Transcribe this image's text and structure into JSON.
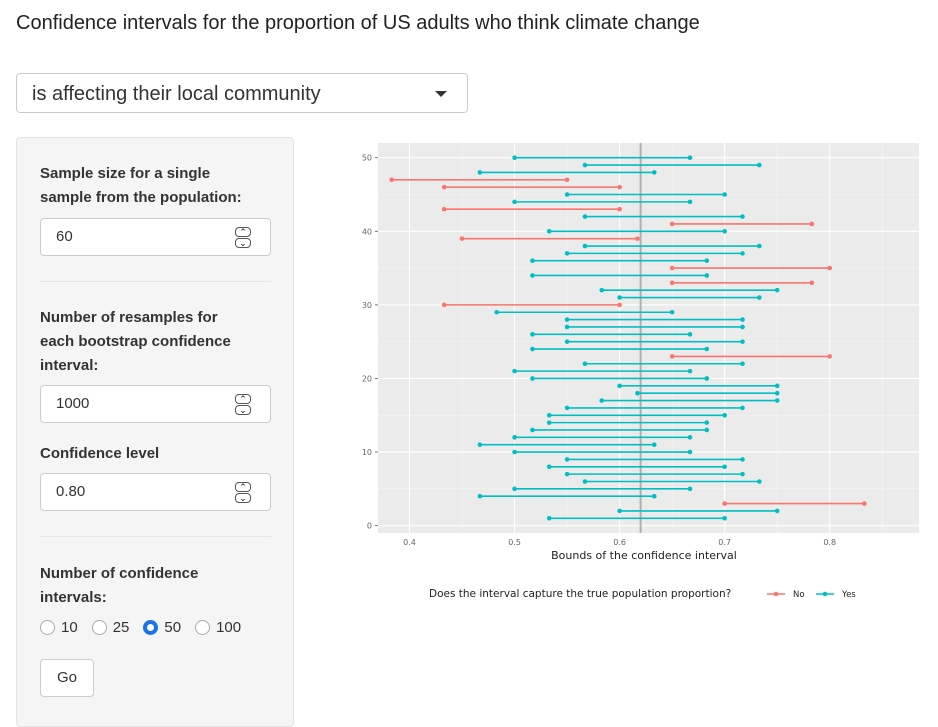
{
  "title": "Confidence intervals for the proportion of US adults who think climate change",
  "statement_select": {
    "value": "is affecting their local community"
  },
  "sample_size": {
    "label_line1": "Sample size for a single",
    "label_line2": "sample from the population:",
    "value": "60"
  },
  "resamples": {
    "label_line1": "Number of resamples for",
    "label_line2": "each bootstrap confidence",
    "label_line3": "interval:",
    "value": "1000"
  },
  "confidence_level": {
    "label": "Confidence level",
    "value": "0.80"
  },
  "num_intervals": {
    "label_line1": "Number of confidence",
    "label_line2": "intervals:",
    "options": [
      "10",
      "25",
      "50",
      "100"
    ],
    "selected": "50"
  },
  "go_button": {
    "label": "Go"
  },
  "colors": {
    "no": "#f8766d",
    "yes": "#00bfc4",
    "panel_bg": "#ebebeb",
    "true_line": "#b0b0b0"
  },
  "chart_data": {
    "type": "interval",
    "xlabel": "Bounds of the confidence interval",
    "ylabel": "",
    "x_ticks": [
      "0.4",
      "0.5",
      "0.6",
      "0.7",
      "0.8"
    ],
    "y_ticks": [
      "0",
      "10",
      "20",
      "30",
      "40",
      "50"
    ],
    "xlim": [
      0.37,
      0.885
    ],
    "ylim": [
      -1,
      52
    ],
    "true_proportion": 0.62,
    "legend_title": "Does the interval capture the true population proportion?",
    "legend_no": "No",
    "legend_yes": "Yes",
    "intervals": [
      {
        "i": 1,
        "lo": 0.533,
        "hi": 0.7,
        "capture": "Yes"
      },
      {
        "i": 2,
        "lo": 0.6,
        "hi": 0.75,
        "capture": "Yes"
      },
      {
        "i": 3,
        "lo": 0.7,
        "hi": 0.833,
        "capture": "No"
      },
      {
        "i": 4,
        "lo": 0.467,
        "hi": 0.633,
        "capture": "Yes"
      },
      {
        "i": 5,
        "lo": 0.5,
        "hi": 0.667,
        "capture": "Yes"
      },
      {
        "i": 6,
        "lo": 0.567,
        "hi": 0.733,
        "capture": "Yes"
      },
      {
        "i": 7,
        "lo": 0.55,
        "hi": 0.717,
        "capture": "Yes"
      },
      {
        "i": 8,
        "lo": 0.533,
        "hi": 0.7,
        "capture": "Yes"
      },
      {
        "i": 9,
        "lo": 0.55,
        "hi": 0.717,
        "capture": "Yes"
      },
      {
        "i": 10,
        "lo": 0.5,
        "hi": 0.667,
        "capture": "Yes"
      },
      {
        "i": 11,
        "lo": 0.467,
        "hi": 0.633,
        "capture": "Yes"
      },
      {
        "i": 12,
        "lo": 0.5,
        "hi": 0.667,
        "capture": "Yes"
      },
      {
        "i": 13,
        "lo": 0.517,
        "hi": 0.683,
        "capture": "Yes"
      },
      {
        "i": 14,
        "lo": 0.533,
        "hi": 0.683,
        "capture": "Yes"
      },
      {
        "i": 15,
        "lo": 0.533,
        "hi": 0.7,
        "capture": "Yes"
      },
      {
        "i": 16,
        "lo": 0.55,
        "hi": 0.717,
        "capture": "Yes"
      },
      {
        "i": 17,
        "lo": 0.583,
        "hi": 0.75,
        "capture": "Yes"
      },
      {
        "i": 18,
        "lo": 0.617,
        "hi": 0.75,
        "capture": "Yes"
      },
      {
        "i": 19,
        "lo": 0.6,
        "hi": 0.75,
        "capture": "Yes"
      },
      {
        "i": 20,
        "lo": 0.517,
        "hi": 0.683,
        "capture": "Yes"
      },
      {
        "i": 21,
        "lo": 0.5,
        "hi": 0.667,
        "capture": "Yes"
      },
      {
        "i": 22,
        "lo": 0.567,
        "hi": 0.717,
        "capture": "Yes"
      },
      {
        "i": 23,
        "lo": 0.65,
        "hi": 0.8,
        "capture": "No"
      },
      {
        "i": 24,
        "lo": 0.517,
        "hi": 0.683,
        "capture": "Yes"
      },
      {
        "i": 25,
        "lo": 0.55,
        "hi": 0.717,
        "capture": "Yes"
      },
      {
        "i": 26,
        "lo": 0.517,
        "hi": 0.667,
        "capture": "Yes"
      },
      {
        "i": 27,
        "lo": 0.55,
        "hi": 0.717,
        "capture": "Yes"
      },
      {
        "i": 28,
        "lo": 0.55,
        "hi": 0.717,
        "capture": "Yes"
      },
      {
        "i": 29,
        "lo": 0.483,
        "hi": 0.65,
        "capture": "Yes"
      },
      {
        "i": 30,
        "lo": 0.433,
        "hi": 0.6,
        "capture": "No"
      },
      {
        "i": 31,
        "lo": 0.6,
        "hi": 0.733,
        "capture": "Yes"
      },
      {
        "i": 32,
        "lo": 0.583,
        "hi": 0.75,
        "capture": "Yes"
      },
      {
        "i": 33,
        "lo": 0.65,
        "hi": 0.783,
        "capture": "No"
      },
      {
        "i": 34,
        "lo": 0.517,
        "hi": 0.683,
        "capture": "Yes"
      },
      {
        "i": 35,
        "lo": 0.65,
        "hi": 0.8,
        "capture": "No"
      },
      {
        "i": 36,
        "lo": 0.517,
        "hi": 0.683,
        "capture": "Yes"
      },
      {
        "i": 37,
        "lo": 0.55,
        "hi": 0.717,
        "capture": "Yes"
      },
      {
        "i": 38,
        "lo": 0.567,
        "hi": 0.733,
        "capture": "Yes"
      },
      {
        "i": 39,
        "lo": 0.45,
        "hi": 0.617,
        "capture": "No"
      },
      {
        "i": 40,
        "lo": 0.533,
        "hi": 0.7,
        "capture": "Yes"
      },
      {
        "i": 41,
        "lo": 0.65,
        "hi": 0.783,
        "capture": "No"
      },
      {
        "i": 42,
        "lo": 0.567,
        "hi": 0.717,
        "capture": "Yes"
      },
      {
        "i": 43,
        "lo": 0.433,
        "hi": 0.6,
        "capture": "No"
      },
      {
        "i": 44,
        "lo": 0.5,
        "hi": 0.667,
        "capture": "Yes"
      },
      {
        "i": 45,
        "lo": 0.55,
        "hi": 0.7,
        "capture": "Yes"
      },
      {
        "i": 46,
        "lo": 0.433,
        "hi": 0.6,
        "capture": "No"
      },
      {
        "i": 47,
        "lo": 0.383,
        "hi": 0.55,
        "capture": "No"
      },
      {
        "i": 48,
        "lo": 0.467,
        "hi": 0.633,
        "capture": "Yes"
      },
      {
        "i": 49,
        "lo": 0.567,
        "hi": 0.733,
        "capture": "Yes"
      },
      {
        "i": 50,
        "lo": 0.5,
        "hi": 0.667,
        "capture": "Yes"
      }
    ]
  }
}
